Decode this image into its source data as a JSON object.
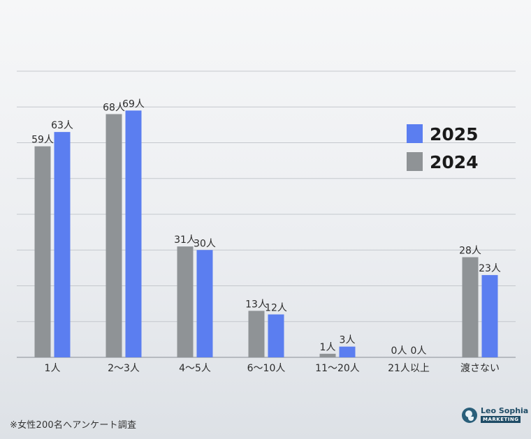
{
  "chart_data": {
    "type": "bar",
    "categories": [
      "1人",
      "2〜3人",
      "4〜5人",
      "6〜10人",
      "11〜20人",
      "21人以上",
      "渡さない"
    ],
    "series": [
      {
        "name": "2024",
        "color": "#8f9396",
        "values": [
          59,
          68,
          31,
          13,
          1,
          0,
          28
        ],
        "labels": [
          "59人",
          "68人",
          "31人",
          "13人",
          "1人",
          "0人",
          "28人"
        ]
      },
      {
        "name": "2025",
        "color": "#5b7ef0",
        "values": [
          63,
          69,
          30,
          12,
          3,
          0,
          23
        ],
        "labels": [
          "63人",
          "69人",
          "30人",
          "12人",
          "3人",
          "0人",
          "23人"
        ]
      }
    ],
    "ylim": [
      0,
      80
    ],
    "grid": true,
    "legend": "top-right"
  },
  "footnote": "※女性200名へアンケート調査",
  "logo": {
    "name": "Leo Sophia",
    "sub": "MARKETING"
  }
}
